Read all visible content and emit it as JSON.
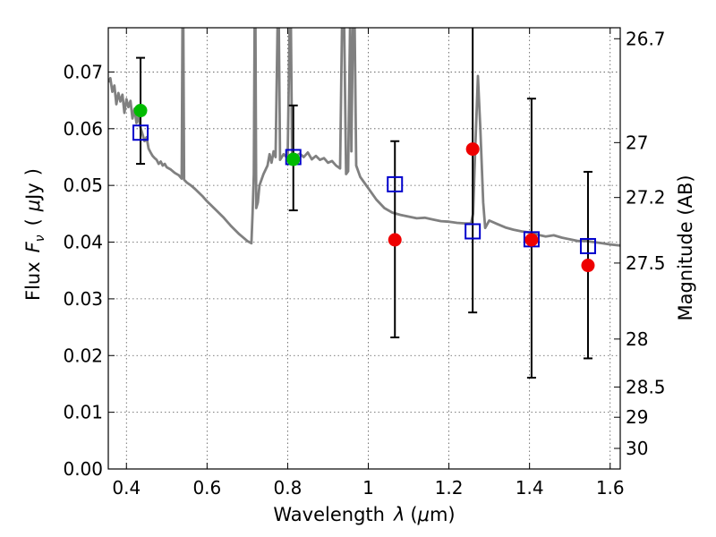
{
  "chart_data": {
    "type": "scatter",
    "title": "",
    "xlabel": {
      "text": "Wavelength",
      "symbol": "λ",
      "unit_open": "(",
      "unit_mu": "μ",
      "unit_rest": "m)"
    },
    "ylabel": {
      "text": "Flux",
      "symbol_main": "F",
      "symbol_sub": "ν",
      "unit_open": "(",
      "unit_mu": "μ",
      "unit_rest": "Jy",
      "unit_close": ")"
    },
    "y2label": "Magnitude (AB)",
    "xlim": [
      0.355,
      1.625
    ],
    "ylim": [
      0.0,
      0.0778
    ],
    "grid": true,
    "x_ticks": [
      {
        "value": 0.4,
        "label": "0.4"
      },
      {
        "value": 0.6,
        "label": "0.6"
      },
      {
        "value": 0.8,
        "label": "0.8"
      },
      {
        "value": 1.0,
        "label": "1"
      },
      {
        "value": 1.2,
        "label": "1.2"
      },
      {
        "value": 1.4,
        "label": "1.4"
      },
      {
        "value": 1.6,
        "label": "1.6"
      }
    ],
    "y_ticks": [
      {
        "value": 0.0,
        "label": "0.00"
      },
      {
        "value": 0.01,
        "label": "0.01"
      },
      {
        "value": 0.02,
        "label": "0.02"
      },
      {
        "value": 0.03,
        "label": "0.03"
      },
      {
        "value": 0.04,
        "label": "0.04"
      },
      {
        "value": 0.05,
        "label": "0.05"
      },
      {
        "value": 0.06,
        "label": "0.06"
      },
      {
        "value": 0.07,
        "label": "0.07"
      }
    ],
    "mag_ticks": [
      {
        "value": 26.7,
        "label": "26.7"
      },
      {
        "value": 27.0,
        "label": "27"
      },
      {
        "value": 27.2,
        "label": "27.2"
      },
      {
        "value": 27.5,
        "label": "27.5"
      },
      {
        "value": 28.0,
        "label": "28"
      },
      {
        "value": 28.5,
        "label": "28.5"
      },
      {
        "value": 29.0,
        "label": "29"
      },
      {
        "value": 30.0,
        "label": "30"
      }
    ],
    "series": [
      {
        "name": "observed-detections",
        "marker": "circle",
        "color": "#00bb00",
        "points": [
          {
            "x": 0.435,
            "y": 0.0632
          },
          {
            "x": 0.814,
            "y": 0.0546
          }
        ]
      },
      {
        "name": "observed-low-significance",
        "marker": "circle",
        "color": "#ee0000",
        "points": [
          {
            "x": 1.066,
            "y": 0.0404
          },
          {
            "x": 1.259,
            "y": 0.0564
          },
          {
            "x": 1.405,
            "y": 0.0404
          },
          {
            "x": 1.545,
            "y": 0.0359
          }
        ]
      },
      {
        "name": "model-photometry",
        "marker": "open-square",
        "color": "#0000cc",
        "points": [
          {
            "x": 0.435,
            "y": 0.0593
          },
          {
            "x": 0.814,
            "y": 0.055
          },
          {
            "x": 1.066,
            "y": 0.0502
          },
          {
            "x": 1.259,
            "y": 0.0419
          },
          {
            "x": 1.405,
            "y": 0.0405
          },
          {
            "x": 1.545,
            "y": 0.0393
          }
        ]
      },
      {
        "name": "error-bars",
        "marker": "errorbar",
        "color": "#000000",
        "points": [
          {
            "x": 0.435,
            "lo": 0.0538,
            "hi": 0.0725
          },
          {
            "x": 0.814,
            "lo": 0.0456,
            "hi": 0.0641
          },
          {
            "x": 1.066,
            "lo": 0.0232,
            "hi": 0.0578
          },
          {
            "x": 1.259,
            "lo": 0.0276,
            "hi": 0.079
          },
          {
            "x": 1.405,
            "lo": 0.0161,
            "hi": 0.0653
          },
          {
            "x": 1.545,
            "lo": 0.0195,
            "hi": 0.0524
          }
        ]
      },
      {
        "name": "model-spectrum",
        "marker": "line",
        "color": "#808080",
        "points": [
          [
            0.355,
            0.0682
          ],
          [
            0.36,
            0.0689
          ],
          [
            0.365,
            0.0665
          ],
          [
            0.37,
            0.0676
          ],
          [
            0.375,
            0.0643
          ],
          [
            0.38,
            0.0663
          ],
          [
            0.385,
            0.0648
          ],
          [
            0.39,
            0.066
          ],
          [
            0.395,
            0.0628
          ],
          [
            0.4,
            0.0652
          ],
          [
            0.405,
            0.0638
          ],
          [
            0.41,
            0.0649
          ],
          [
            0.415,
            0.0618
          ],
          [
            0.42,
            0.0635
          ],
          [
            0.425,
            0.061
          ],
          [
            0.43,
            0.0622
          ],
          [
            0.435,
            0.0602
          ],
          [
            0.44,
            0.059
          ],
          [
            0.445,
            0.0578
          ],
          [
            0.45,
            0.0585
          ],
          [
            0.455,
            0.0565
          ],
          [
            0.46,
            0.0558
          ],
          [
            0.465,
            0.0552
          ],
          [
            0.47,
            0.0548
          ],
          [
            0.475,
            0.0545
          ],
          [
            0.48,
            0.0538
          ],
          [
            0.485,
            0.0542
          ],
          [
            0.49,
            0.0535
          ],
          [
            0.495,
            0.0538
          ],
          [
            0.5,
            0.0532
          ],
          [
            0.51,
            0.0528
          ],
          [
            0.52,
            0.0522
          ],
          [
            0.53,
            0.0518
          ],
          [
            0.537,
            0.0512
          ],
          [
            0.539,
            0.079
          ],
          [
            0.541,
            0.079
          ],
          [
            0.543,
            0.051
          ],
          [
            0.55,
            0.0505
          ],
          [
            0.56,
            0.05
          ],
          [
            0.57,
            0.0494
          ],
          [
            0.58,
            0.0487
          ],
          [
            0.59,
            0.048
          ],
          [
            0.6,
            0.0472
          ],
          [
            0.62,
            0.0458
          ],
          [
            0.64,
            0.0444
          ],
          [
            0.66,
            0.0428
          ],
          [
            0.68,
            0.0414
          ],
          [
            0.7,
            0.0402
          ],
          [
            0.71,
            0.0398
          ],
          [
            0.713,
            0.045
          ],
          [
            0.716,
            0.052
          ],
          [
            0.718,
            0.079
          ],
          [
            0.72,
            0.079
          ],
          [
            0.722,
            0.046
          ],
          [
            0.726,
            0.047
          ],
          [
            0.73,
            0.05
          ],
          [
            0.74,
            0.052
          ],
          [
            0.75,
            0.0535
          ],
          [
            0.755,
            0.0555
          ],
          [
            0.76,
            0.054
          ],
          [
            0.765,
            0.056
          ],
          [
            0.77,
            0.055
          ],
          [
            0.775,
            0.079
          ],
          [
            0.778,
            0.079
          ],
          [
            0.781,
            0.0545
          ],
          [
            0.79,
            0.0555
          ],
          [
            0.8,
            0.0548
          ],
          [
            0.805,
            0.079
          ],
          [
            0.808,
            0.079
          ],
          [
            0.811,
            0.0548
          ],
          [
            0.82,
            0.0552
          ],
          [
            0.83,
            0.0556
          ],
          [
            0.84,
            0.055
          ],
          [
            0.85,
            0.0558
          ],
          [
            0.86,
            0.0546
          ],
          [
            0.87,
            0.0552
          ],
          [
            0.88,
            0.0545
          ],
          [
            0.89,
            0.0548
          ],
          [
            0.9,
            0.054
          ],
          [
            0.91,
            0.0543
          ],
          [
            0.92,
            0.0535
          ],
          [
            0.93,
            0.053
          ],
          [
            0.935,
            0.079
          ],
          [
            0.94,
            0.079
          ],
          [
            0.945,
            0.052
          ],
          [
            0.95,
            0.0525
          ],
          [
            0.955,
            0.079
          ],
          [
            0.958,
            0.056
          ],
          [
            0.962,
            0.079
          ],
          [
            0.966,
            0.079
          ],
          [
            0.97,
            0.0535
          ],
          [
            0.98,
            0.0515
          ],
          [
            0.99,
            0.0505
          ],
          [
            1.0,
            0.0495
          ],
          [
            1.02,
            0.0475
          ],
          [
            1.04,
            0.046
          ],
          [
            1.06,
            0.0452
          ],
          [
            1.08,
            0.0448
          ],
          [
            1.1,
            0.0445
          ],
          [
            1.12,
            0.0442
          ],
          [
            1.14,
            0.0443
          ],
          [
            1.16,
            0.044
          ],
          [
            1.18,
            0.0437
          ],
          [
            1.2,
            0.0436
          ],
          [
            1.22,
            0.0434
          ],
          [
            1.24,
            0.0433
          ],
          [
            1.255,
            0.0433
          ],
          [
            1.26,
            0.045
          ],
          [
            1.265,
            0.056
          ],
          [
            1.272,
            0.0693
          ],
          [
            1.278,
            0.06
          ],
          [
            1.285,
            0.047
          ],
          [
            1.29,
            0.0425
          ],
          [
            1.3,
            0.0438
          ],
          [
            1.32,
            0.0432
          ],
          [
            1.34,
            0.0426
          ],
          [
            1.36,
            0.0422
          ],
          [
            1.38,
            0.0419
          ],
          [
            1.4,
            0.0417
          ],
          [
            1.42,
            0.0413
          ],
          [
            1.44,
            0.041
          ],
          [
            1.46,
            0.0412
          ],
          [
            1.48,
            0.0408
          ],
          [
            1.5,
            0.0405
          ],
          [
            1.52,
            0.0402
          ],
          [
            1.54,
            0.0402
          ],
          [
            1.56,
            0.04
          ],
          [
            1.58,
            0.0398
          ],
          [
            1.6,
            0.0396
          ],
          [
            1.625,
            0.0394
          ]
        ]
      }
    ]
  }
}
